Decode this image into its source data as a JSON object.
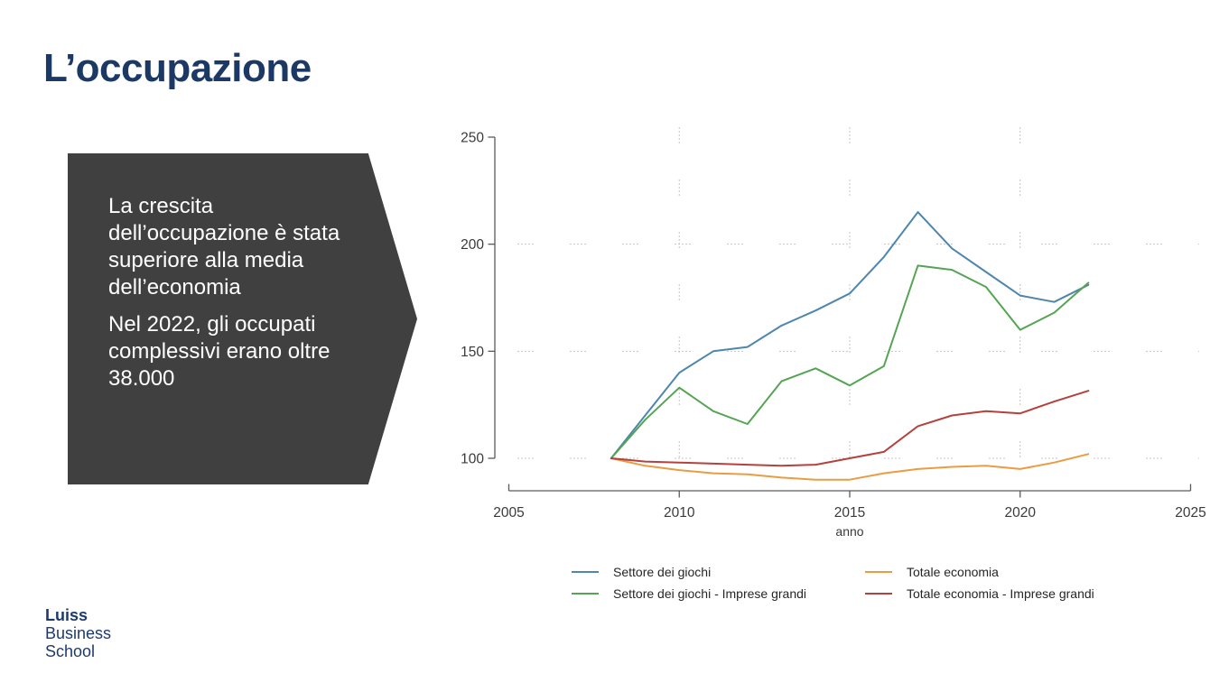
{
  "slide": {
    "title": "L’occupazione",
    "callout": {
      "paragraph1": "La crescita dell’occupazione è stata superiore alla media dell’economia",
      "paragraph2": "Nel 2022, gli occupati complessivi erano oltre 38.000"
    },
    "logo": {
      "line1": "Luiss",
      "line2": "Business",
      "line3": "School"
    }
  },
  "colors": {
    "title": "#1c3966",
    "callout_bg": "#404040",
    "callout_text": "#ffffff",
    "logo": "#1d3a6d",
    "axis": "#5a5a5a",
    "tick_label": "#3a3a3a",
    "grid": "#c4c4c4"
  },
  "chart_data": {
    "type": "line",
    "title": "",
    "xlabel": "anno",
    "ylabel": "",
    "xlim": [
      2005,
      2025
    ],
    "ylim": [
      100,
      250
    ],
    "x_ticks": [
      2005,
      2010,
      2015,
      2020,
      2025
    ],
    "y_ticks": [
      100,
      150,
      200,
      250
    ],
    "grid": true,
    "grid_x": [
      2010,
      2015,
      2020
    ],
    "grid_y": [
      100,
      150,
      200
    ],
    "legend_position": "bottom",
    "x": [
      2008,
      2009,
      2010,
      2011,
      2012,
      2013,
      2014,
      2015,
      2016,
      2017,
      2018,
      2019,
      2020,
      2021,
      2022
    ],
    "series": [
      {
        "name": "Settore dei giochi",
        "color": "#4e86ae",
        "values": [
          100,
          120,
          140,
          150,
          152,
          162,
          169,
          177,
          194,
          215,
          198,
          187,
          176,
          173,
          181
        ]
      },
      {
        "name": "Settore dei giochi - Imprese grandi",
        "color": "#55a453",
        "values": [
          100,
          118,
          133,
          122,
          116,
          136,
          142,
          134,
          143,
          190,
          188,
          180,
          160,
          168,
          182
        ]
      },
      {
        "name": "Totale economia",
        "color": "#eb9c43",
        "values": [
          100,
          96.5,
          94.5,
          93,
          92.5,
          91,
          90,
          90,
          93,
          95,
          96,
          96.5,
          95,
          98,
          102
        ]
      },
      {
        "name": "Totale economia - Imprese grandi",
        "color": "#b5413c",
        "values": [
          100,
          98.5,
          98,
          97.5,
          97,
          96.5,
          97,
          100,
          103,
          115,
          120,
          122,
          121,
          126.5,
          131.5
        ]
      }
    ]
  }
}
